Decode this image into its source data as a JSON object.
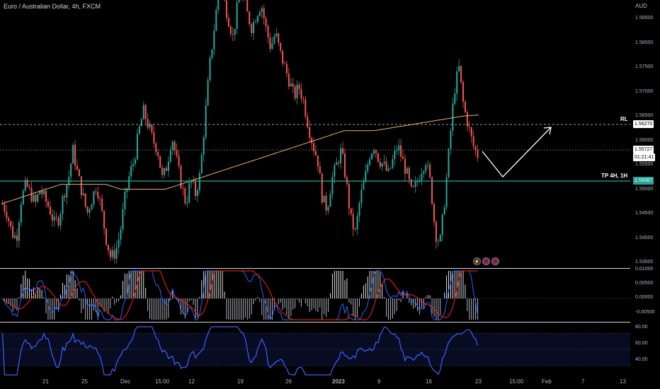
{
  "symbol_title": "Euro / Australian Dollar, 4h, FXCM",
  "currency": "AUD",
  "price_axis": [
    "1.58500",
    "1.58000",
    "1.57500",
    "1.57000",
    "1.56500",
    "1.56000",
    "1.55500",
    "1.55000",
    "1.54500",
    "1.54000",
    "1.53500"
  ],
  "macd_axis": [
    "0.01000",
    "0.00500",
    "0.00000",
    "-0.00500"
  ],
  "rsi_axis": [
    "80.00",
    "60.00",
    "40.00"
  ],
  "time_axis": [
    "21",
    "25",
    "Dec",
    "15:00",
    "12",
    "19",
    "26",
    "2023",
    "9",
    "16",
    "23",
    "15:00",
    "Feb",
    "7",
    "13"
  ],
  "current_price": "1.55727",
  "countdown": "01:21:41",
  "rl_level": {
    "label": "RL",
    "price": "1.56270"
  },
  "tp_level": {
    "label": "TP 4H, 1H",
    "price": "1.55067"
  },
  "colors": {
    "up": "#26a69a",
    "down": "#ef5350",
    "ma": "#e0b36a",
    "macd": "#2962ff",
    "signal": "#ff1f1f",
    "rsi": "#3f5fff",
    "tp_line": "#26a69a"
  },
  "chart_data": {
    "type": "candlestick",
    "timeframe": "4h",
    "ylim": [
      1.531,
      1.59
    ],
    "close_path": [
      1.547,
      1.545,
      1.541,
      1.54,
      1.548,
      1.551,
      1.549,
      1.547,
      1.55,
      1.548,
      1.546,
      1.543,
      1.544,
      1.549,
      1.552,
      1.558,
      1.553,
      1.549,
      1.545,
      1.548,
      1.551,
      1.546,
      1.54,
      1.536,
      1.537,
      1.541,
      1.548,
      1.553,
      1.556,
      1.562,
      1.566,
      1.563,
      1.56,
      1.558,
      1.552,
      1.555,
      1.561,
      1.556,
      1.551,
      1.547,
      1.552,
      1.549,
      1.553,
      1.564,
      1.575,
      1.583,
      1.591,
      1.589,
      1.585,
      1.581,
      1.588,
      1.59,
      1.586,
      1.583,
      1.586,
      1.588,
      1.583,
      1.579,
      1.582,
      1.578,
      1.575,
      1.572,
      1.569,
      1.571,
      1.568,
      1.563,
      1.559,
      1.556,
      1.548,
      1.546,
      1.552,
      1.555,
      1.558,
      1.552,
      1.544,
      1.541,
      1.548,
      1.552,
      1.557,
      1.559,
      1.556,
      1.555,
      1.553,
      1.556,
      1.559,
      1.556,
      1.553,
      1.549,
      1.551,
      1.554,
      1.556,
      1.551,
      1.541,
      1.539,
      1.548,
      1.559,
      1.57,
      1.575,
      1.567,
      1.563,
      1.559,
      1.557
    ],
    "ma_path": [
      1.547,
      1.548,
      1.549,
      1.55,
      1.551,
      1.551,
      1.551,
      1.551,
      1.55,
      1.55,
      1.55,
      1.55,
      1.551,
      1.552,
      1.553,
      1.554,
      1.555,
      1.556,
      1.557,
      1.558,
      1.559,
      1.56,
      1.561,
      1.562,
      1.562,
      1.562,
      1.5625,
      1.563,
      1.5635,
      1.564,
      1.5645,
      1.565,
      1.5652
    ],
    "projection": [
      [
        1.5573,
        "now"
      ],
      [
        1.5505,
        "low"
      ],
      [
        1.5625,
        "high"
      ]
    ]
  }
}
